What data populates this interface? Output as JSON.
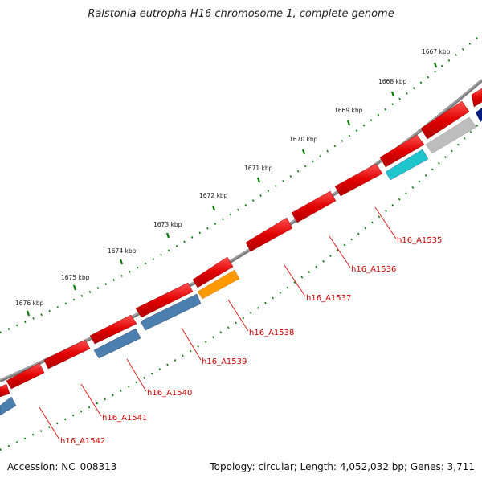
{
  "title": "Ralstonia eutropha H16 chromosome 1, complete genome",
  "footer": {
    "accession": "Accession: NC_008313",
    "summary": "Topology: circular; Length: 4,052,032 bp; Genes: 3,711"
  },
  "colors": {
    "forward_gene": "#e00000",
    "reverse_gene_blue": "#4a7fb0",
    "reverse_gene_cyan": "#1ec6cc",
    "reverse_gene_gray": "#bdbdbd",
    "reverse_gene_navy": "#001a80",
    "reverse_gene_orange": "#ff9900",
    "backbone": "#7a7a7a",
    "tick_dots": "#0a7a0a",
    "gene_label": "#cc0000"
  },
  "kbp_labels": [
    "1667 kbp",
    "1668 kbp",
    "1669 kbp",
    "1670 kbp",
    "1671 kbp",
    "1672 kbp",
    "1673 kbp",
    "1674 kbp",
    "1675 kbp",
    "1676 kbp"
  ],
  "gene_labels": [
    "h16_A1535",
    "h16_A1536",
    "h16_A1537",
    "h16_A1538",
    "h16_A1539",
    "h16_A1540",
    "h16_A1541",
    "h16_A1542"
  ]
}
